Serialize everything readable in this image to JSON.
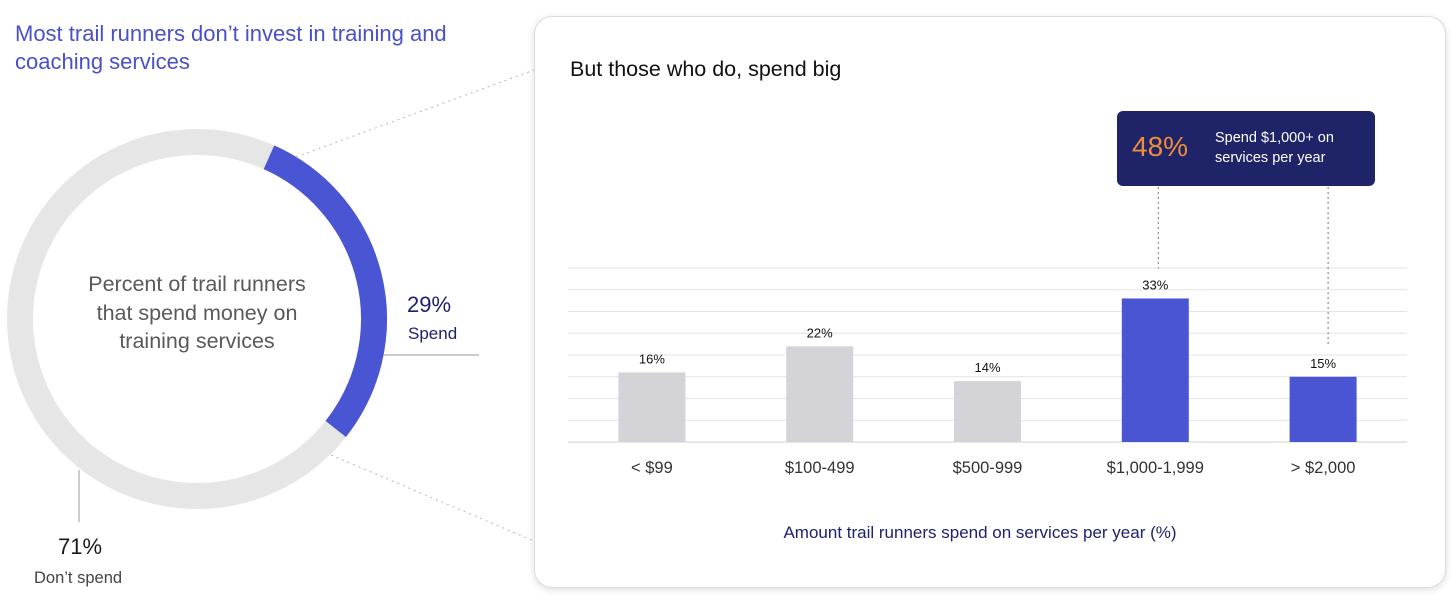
{
  "left": {
    "title": "Most trail runners don’t invest in training and coaching services",
    "center_label": "Percent of trail runners that spend money on training services",
    "spend_pct": "29%",
    "spend_label": "Spend",
    "dont_pct": "71%",
    "dont_label": "Don’t spend"
  },
  "right": {
    "title": "But those who do, spend big",
    "callout_pct": "48%",
    "callout_text": "Spend $1,000+ on services per year",
    "xlabel": "Amount trail runners spend on services per year (%)"
  },
  "colors": {
    "accent": "#4a55d4",
    "gray_bar": "#d3d3d8",
    "ring_gray": "#e6e6e6",
    "navy": "#1f2468",
    "orange": "#ef8c3c"
  },
  "chart_data": [
    {
      "type": "pie",
      "donut": true,
      "labels": [
        "Spend",
        "Don’t spend"
      ],
      "values": [
        29,
        71
      ],
      "unit": "%"
    },
    {
      "type": "bar",
      "title": "But those who do, spend big",
      "categories": [
        "< $99",
        "$100-499",
        "$500-999",
        "$1,000-1,999",
        "> $2,000"
      ],
      "values": [
        16,
        22,
        14,
        33,
        15
      ],
      "data_labels": [
        "16%",
        "22%",
        "14%",
        "33%",
        "15%"
      ],
      "highlight": [
        false,
        false,
        false,
        true,
        true
      ],
      "xlabel": "Amount trail runners spend on services per year (%)",
      "ylabel": "",
      "ylim": [
        0,
        40
      ],
      "grid": true
    }
  ]
}
